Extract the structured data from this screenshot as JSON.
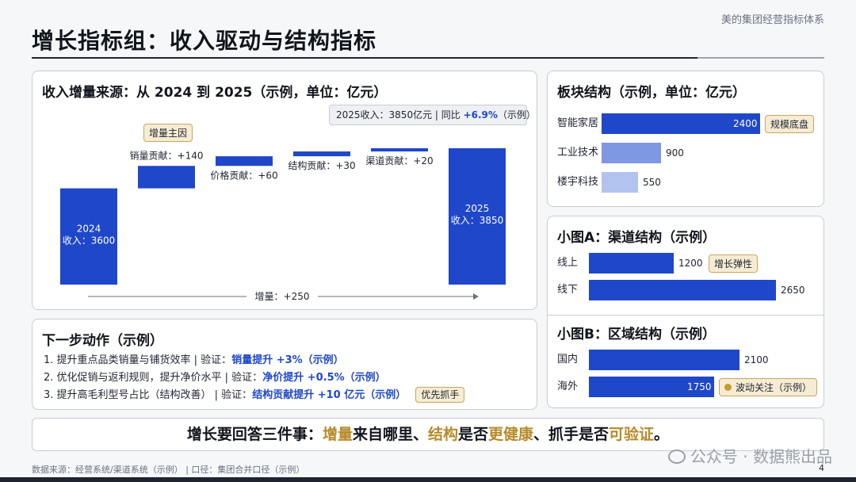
{
  "brand": "美的集团经营指标体系",
  "title": "增长指标组：收入驱动与结构指标",
  "waterfall": {
    "title": "收入增量来源：从 2024 到 2025（示例，单位：亿元）",
    "summary_prefix": "2025收入：3850亿元 | 同比 ",
    "summary_highlight": "+6.9%",
    "summary_suffix": "（示例）",
    "tag": "增量主因",
    "total_label": "增量：+250"
  },
  "chart_data": [
    {
      "type": "bar",
      "subtype": "waterfall",
      "title": "收入增量来源：从 2024 到 2025（示例，单位：亿元）",
      "categories": [
        "2024 收入",
        "销量贡献",
        "价格贡献",
        "结构贡献",
        "渠道贡献",
        "2025 收入"
      ],
      "values": [
        3600,
        140,
        60,
        30,
        20,
        3850
      ],
      "bar_kinds": [
        "total",
        "delta",
        "delta",
        "delta",
        "delta",
        "total"
      ],
      "labels": [
        [
          "2024",
          "收入：3600"
        ],
        [
          "销量贡献：+140"
        ],
        [
          "价格贡献：+60"
        ],
        [
          "结构贡献：+30"
        ],
        [
          "渠道贡献：+20"
        ],
        [
          "2025",
          "收入：3850"
        ]
      ],
      "color": "#1f47c9"
    },
    {
      "type": "bar",
      "orientation": "horizontal",
      "title": "板块结构（示例，单位：亿元）",
      "categories": [
        "智能家居",
        "工业技术",
        "楼宇科技"
      ],
      "values": [
        2400,
        900,
        550
      ],
      "colors": [
        "#1f47c9",
        "#7f98e3",
        "#b3c3ef"
      ],
      "tags": [
        "规模底盘",
        "",
        ""
      ]
    },
    {
      "type": "bar",
      "orientation": "horizontal",
      "title": "小图A：渠道结构（示例）",
      "categories": [
        "线上",
        "线下"
      ],
      "values": [
        1200,
        2650
      ],
      "colors": [
        "#1f47c9",
        "#1f47c9"
      ],
      "tags": [
        "增长弹性",
        ""
      ]
    },
    {
      "type": "bar",
      "orientation": "horizontal",
      "title": "小图B：区域结构（示例）",
      "categories": [
        "国内",
        "海外"
      ],
      "values": [
        2100,
        1750
      ],
      "colors": [
        "#1f47c9",
        "#1f47c9"
      ],
      "tags": [
        "",
        "波动关注（示例）"
      ]
    }
  ],
  "actions": {
    "title": "下一步动作（示例）",
    "items": [
      {
        "text": "1.  提升重点品类销量与铺货效率 | 验证：",
        "highlight": "销量提升 +3%（示例）",
        "tag": ""
      },
      {
        "text": "2.  优化促销与返利规则，提升净价水平 | 验证：",
        "highlight": "净价提升 +0.5%（示例）",
        "tag": ""
      },
      {
        "text": "3.  提升高毛利型号占比（结构改善） | 验证：",
        "highlight": "结构贡献提升 +10 亿元（示例）",
        "tag": "优先抓手"
      }
    ]
  },
  "banner": {
    "p1": "增长要回答三件事：",
    "g1": "增量",
    "p2": "来自哪里、",
    "g2": "结构",
    "p3": "是否",
    "g3": "更健康",
    "p4": "、抓手是否",
    "g4": "可验证",
    "p5": "。"
  },
  "footer": "数据来源：经营系统/渠道系统（示例） | 口径：集团合并口径（示例）",
  "page_number": "4",
  "watermark": "公众号 · 数据熊出品",
  "colors": {
    "bar": "#1f47c9",
    "tag_bg": "#f6ecd3",
    "gold": "#b68a2a"
  },
  "icons": {
    "wechat": "wechat-icon",
    "dot": "dot-icon"
  }
}
